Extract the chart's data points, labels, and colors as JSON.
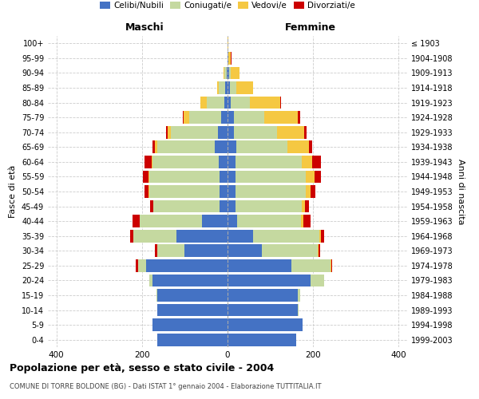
{
  "age_groups": [
    "0-4",
    "5-9",
    "10-14",
    "15-19",
    "20-24",
    "25-29",
    "30-34",
    "35-39",
    "40-44",
    "45-49",
    "50-54",
    "55-59",
    "60-64",
    "65-69",
    "70-74",
    "75-79",
    "80-84",
    "85-89",
    "90-94",
    "95-99",
    "100+"
  ],
  "birth_years": [
    "1999-2003",
    "1994-1998",
    "1989-1993",
    "1984-1988",
    "1979-1983",
    "1974-1978",
    "1969-1973",
    "1964-1968",
    "1959-1963",
    "1954-1958",
    "1949-1953",
    "1944-1948",
    "1939-1943",
    "1934-1938",
    "1929-1933",
    "1924-1928",
    "1919-1923",
    "1914-1918",
    "1909-1913",
    "1904-1908",
    "≤ 1903"
  ],
  "maschi": {
    "celibi": [
      165,
      175,
      165,
      165,
      175,
      190,
      100,
      120,
      60,
      18,
      18,
      18,
      20,
      30,
      22,
      15,
      8,
      5,
      2,
      0,
      0
    ],
    "coniugati": [
      0,
      0,
      0,
      2,
      8,
      20,
      65,
      100,
      145,
      155,
      165,
      165,
      155,
      135,
      110,
      75,
      40,
      15,
      5,
      0,
      0
    ],
    "vedovi": [
      0,
      0,
      0,
      0,
      0,
      0,
      0,
      0,
      0,
      0,
      1,
      2,
      2,
      4,
      8,
      12,
      15,
      5,
      2,
      0,
      0
    ],
    "divorziati": [
      0,
      0,
      0,
      0,
      0,
      5,
      5,
      8,
      18,
      8,
      10,
      12,
      18,
      6,
      4,
      2,
      0,
      0,
      0,
      0,
      0
    ]
  },
  "femmine": {
    "nubili": [
      160,
      175,
      165,
      165,
      195,
      150,
      80,
      60,
      22,
      18,
      18,
      18,
      18,
      20,
      15,
      15,
      8,
      5,
      3,
      2,
      0
    ],
    "coniugate": [
      0,
      0,
      1,
      5,
      30,
      90,
      130,
      155,
      150,
      155,
      165,
      165,
      155,
      120,
      100,
      70,
      45,
      15,
      5,
      0,
      0
    ],
    "vedove": [
      0,
      0,
      0,
      0,
      0,
      2,
      2,
      3,
      5,
      8,
      12,
      20,
      25,
      50,
      65,
      80,
      70,
      40,
      20,
      5,
      2
    ],
    "divorziate": [
      0,
      0,
      0,
      0,
      0,
      2,
      5,
      8,
      18,
      10,
      10,
      15,
      20,
      8,
      5,
      5,
      2,
      0,
      0,
      2,
      0
    ]
  },
  "colors": {
    "celibi": "#4472C4",
    "coniugati": "#C5D9A0",
    "vedovi": "#F5C842",
    "divorziati": "#CC0000"
  },
  "xlim": 420,
  "title": "Popolazione per età, sesso e stato civile - 2004",
  "subtitle": "COMUNE DI TORRE BOLDONE (BG) - Dati ISTAT 1° gennaio 2004 - Elaborazione TUTTITALIA.IT",
  "ylabel_left": "Fasce di età",
  "ylabel_right": "Anni di nascita",
  "xlabel_left": "Maschi",
  "xlabel_right": "Femmine",
  "legend_labels": [
    "Celibi/Nubili",
    "Coniugati/e",
    "Vedovi/e",
    "Divorziati/e"
  ]
}
